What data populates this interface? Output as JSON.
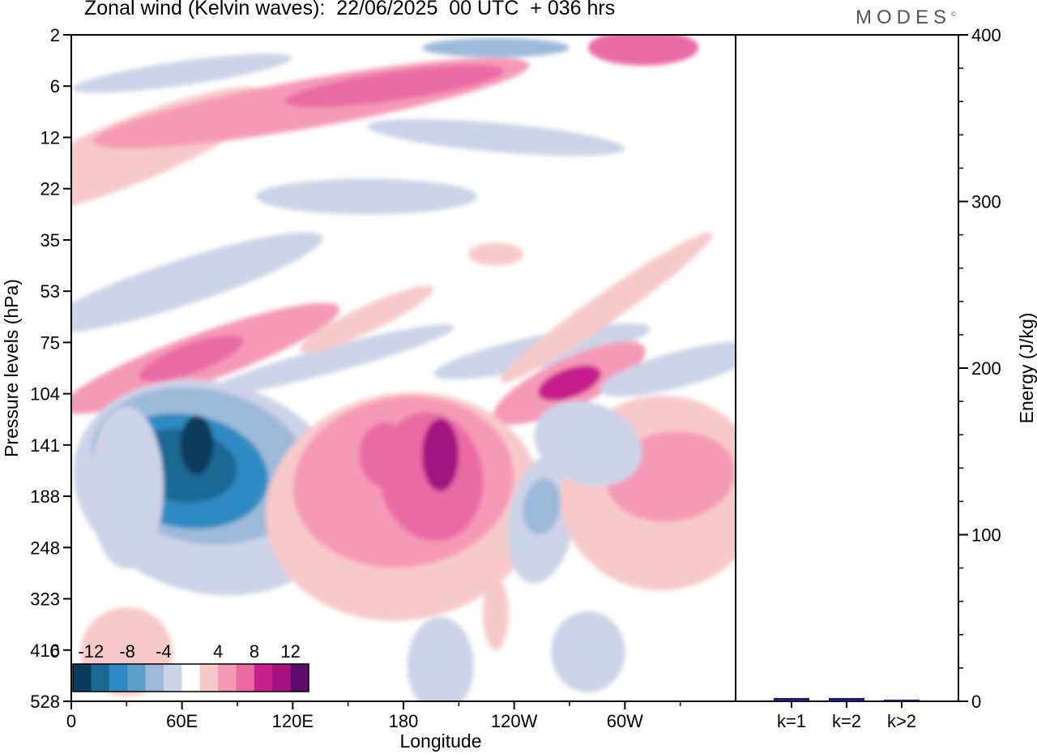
{
  "title": "Zonal wind (Kelvin waves):  22/06/2025  00 UTC  + 036 hrs",
  "logo": "MODES",
  "logo_mark": "©",
  "chart_data": [
    {
      "type": "heatmap",
      "xlabel": "Longitude",
      "ylabel": "Pressure levels (hPa)",
      "x_ticks": [
        "0",
        "60E",
        "120E",
        "180",
        "120W",
        "60W"
      ],
      "x_tick_values": [
        0,
        60,
        120,
        180,
        240,
        300
      ],
      "xlim": [
        0,
        360
      ],
      "y_ticks": [
        "2",
        "6",
        "12",
        "22",
        "35",
        "53",
        "75",
        "104",
        "141",
        "188",
        "248",
        "323",
        "416",
        "528"
      ],
      "colorbar": {
        "labels": [
          "-12",
          "-8",
          "-4",
          "0",
          "4",
          "8",
          "12"
        ],
        "label_values": [
          -12,
          -8,
          -4,
          0,
          4,
          8,
          12
        ],
        "levels": [
          -14,
          -12,
          -10,
          -8,
          -6,
          -4,
          -2,
          2,
          4,
          6,
          8,
          10,
          12,
          14
        ],
        "colors": [
          "#0b3b5c",
          "#1b6895",
          "#2e8ac2",
          "#5e9dcb",
          "#9db9da",
          "#cdd3e8",
          "#ffffff",
          "#f8c9c9",
          "#f59ab6",
          "#ea6aa6",
          "#c81f8c",
          "#a3127f",
          "#5e0b6e"
        ]
      },
      "features": [
        {
          "label": "negative anomaly",
          "center": [
            68,
            141
          ],
          "peak": -14
        },
        {
          "label": "positive anomaly",
          "center": [
            200,
            150
          ],
          "peak": 10
        },
        {
          "label": "positive anomaly",
          "center": [
            175,
            160
          ],
          "peak": 8
        },
        {
          "label": "positive anomaly",
          "center": [
            270,
            98
          ],
          "peak": 8
        },
        {
          "label": "positive anomaly",
          "center": [
            65,
            84
          ],
          "peak": 8
        },
        {
          "label": "positive anomaly",
          "center": [
            325,
            170
          ],
          "peak": 6
        },
        {
          "label": "negative anomaly",
          "center": [
            255,
            200
          ],
          "peak": -5
        },
        {
          "label": "positive anomaly",
          "center": [
            215,
            6
          ],
          "peak": 8
        },
        {
          "label": "negative anomaly",
          "center": [
            230,
            3
          ],
          "peak": -10
        },
        {
          "label": "positive anomaly",
          "center": [
            310,
            3
          ],
          "peak": 8
        }
      ]
    },
    {
      "type": "bar",
      "ylabel": "Energy (J/kg)",
      "ylim": [
        0,
        400
      ],
      "y_ticks": [
        "0",
        "100",
        "200",
        "300",
        "400"
      ],
      "y_tick_values": [
        0,
        100,
        200,
        300,
        400
      ],
      "categories": [
        "k=1",
        "k=2",
        "k>2"
      ],
      "values": [
        2,
        2,
        1
      ],
      "bar_color": "#1a1a7a"
    }
  ]
}
